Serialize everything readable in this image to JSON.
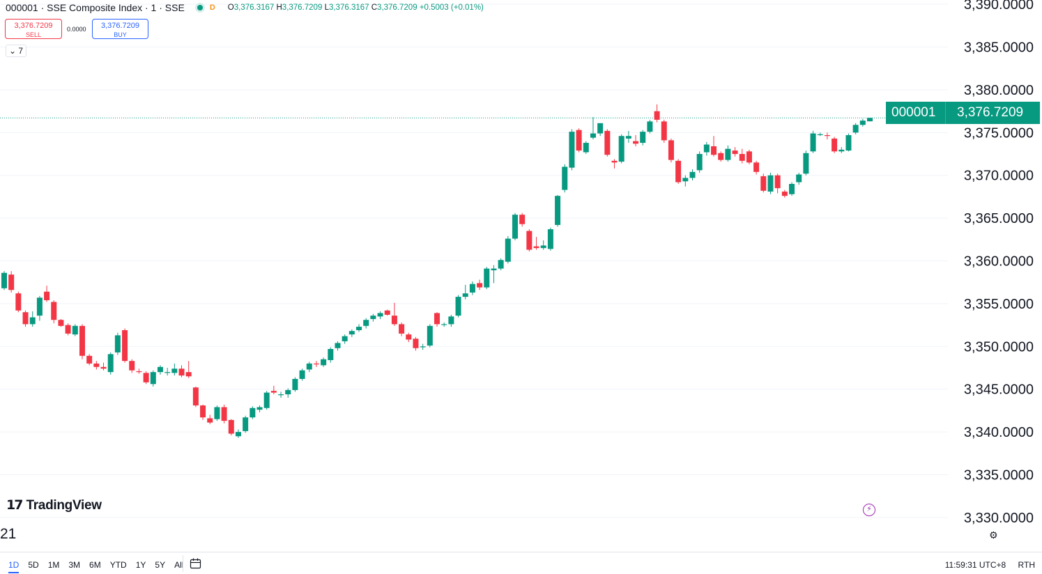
{
  "header": {
    "symbol_line": "000001 · SSE Composite Index · 1 · SSE",
    "badge": "D",
    "o_label": "O",
    "o_value": "3,376.3167",
    "h_label": "H",
    "h_value": "3,376.7209",
    "l_label": "L",
    "l_value": "3,376.3167",
    "c_label": "C",
    "c_value": "3,376.7209",
    "change": "+0.5003 (+0.01%)"
  },
  "trade": {
    "sell_price": "3,376.7209",
    "sell_label": "SELL",
    "spread": "0.0000",
    "buy_price": "3,376.7209",
    "buy_label": "BUY"
  },
  "indicators_toggle": "7",
  "brand": "TradingView",
  "price_tag": {
    "symbol": "000001",
    "value": "3,376.7209"
  },
  "x_axis_fragment": "21",
  "ranges": [
    "1D",
    "5D",
    "1M",
    "3M",
    "6M",
    "YTD",
    "1Y",
    "5Y",
    "All"
  ],
  "active_range": "1D",
  "clock": "11:59:31 UTC+8",
  "session": "RTH",
  "colors": {
    "up": "#089981",
    "down": "#f23645",
    "grid": "#f0f3fa",
    "accent": "#2962ff"
  },
  "icons": [
    "chevron-down-icon",
    "calendar-icon",
    "lightning-icon",
    "gear-icon",
    "tradingview-logo-icon"
  ],
  "chart_data": {
    "type": "candlestick",
    "y_ticks": [
      3330,
      3335,
      3340,
      3345,
      3350,
      3355,
      3360,
      3365,
      3370,
      3375,
      3380,
      3385,
      3390
    ],
    "y_tick_labels": [
      "3,330.0000",
      "3,335.0000",
      "3,340.0000",
      "3,345.0000",
      "3,350.0000",
      "3,355.0000",
      "3,360.0000",
      "3,365.0000",
      "3,370.0000",
      "3,375.0000",
      "3,380.0000",
      "3,385.0000",
      "3,390.0000"
    ],
    "ylim": [
      3326,
      3390.5
    ],
    "last_price": 3376.7209,
    "grid": true,
    "candles": [
      [
        3356.8,
        3358.8,
        3356.6,
        3358.6
      ],
      [
        3358.4,
        3358.8,
        3356.3,
        3356.6
      ],
      [
        3356.2,
        3356.4,
        3354.0,
        3354.2
      ],
      [
        3354.0,
        3354.2,
        3352.3,
        3352.6
      ],
      [
        3352.6,
        3354.1,
        3352.3,
        3353.4
      ],
      [
        3353.6,
        3355.9,
        3353.0,
        3355.7
      ],
      [
        3356.4,
        3357.1,
        3355.2,
        3355.4
      ],
      [
        3355.2,
        3355.4,
        3352.7,
        3353.1
      ],
      [
        3353.1,
        3353.2,
        3352.3,
        3352.4
      ],
      [
        3352.5,
        3352.7,
        3351.3,
        3351.5
      ],
      [
        3351.4,
        3352.6,
        3351.2,
        3352.4
      ],
      [
        3352.4,
        3352.6,
        3348.5,
        3348.9
      ],
      [
        3348.9,
        3349.1,
        3347.8,
        3348.0
      ],
      [
        3348.0,
        3348.3,
        3347.3,
        3347.6
      ],
      [
        3347.6,
        3348.1,
        3347.2,
        3347.4
      ],
      [
        3347.0,
        3349.3,
        3346.7,
        3349.1
      ],
      [
        3349.3,
        3351.6,
        3349.0,
        3351.3
      ],
      [
        3351.9,
        3352.1,
        3348.1,
        3348.3
      ],
      [
        3348.3,
        3348.5,
        3346.9,
        3347.2
      ],
      [
        3347.1,
        3347.4,
        3346.8,
        3347.0
      ],
      [
        3346.9,
        3347.1,
        3345.6,
        3345.8
      ],
      [
        3345.6,
        3347.2,
        3345.3,
        3347.0
      ],
      [
        3347.0,
        3347.8,
        3346.7,
        3347.6
      ],
      [
        3346.9,
        3347.5,
        3346.6,
        3347.0
      ],
      [
        3346.9,
        3348.0,
        3346.6,
        3347.4
      ],
      [
        3347.4,
        3347.8,
        3346.4,
        3346.6
      ],
      [
        3347.0,
        3348.3,
        3346.3,
        3346.5
      ],
      [
        3345.2,
        3345.3,
        3342.9,
        3343.1
      ],
      [
        3343.1,
        3343.2,
        3341.4,
        3341.7
      ],
      [
        3341.6,
        3342.0,
        3340.9,
        3341.1
      ],
      [
        3341.5,
        3343.1,
        3341.3,
        3342.9
      ],
      [
        3342.9,
        3343.2,
        3341.0,
        3341.3
      ],
      [
        3341.4,
        3341.5,
        3339.6,
        3339.8
      ],
      [
        3339.5,
        3340.3,
        3339.3,
        3340.0
      ],
      [
        3340.1,
        3341.9,
        3339.9,
        3341.7
      ],
      [
        3341.7,
        3343.0,
        3341.5,
        3342.8
      ],
      [
        3342.6,
        3343.1,
        3342.3,
        3342.9
      ],
      [
        3342.8,
        3344.8,
        3342.6,
        3344.6
      ],
      [
        3344.8,
        3345.4,
        3344.4,
        3344.6
      ],
      [
        3344.3,
        3344.7,
        3344.0,
        3344.4
      ],
      [
        3344.4,
        3345.1,
        3344.0,
        3344.9
      ],
      [
        3344.9,
        3346.4,
        3344.7,
        3346.2
      ],
      [
        3346.2,
        3347.4,
        3346.0,
        3347.2
      ],
      [
        3347.3,
        3348.2,
        3347.0,
        3348.0
      ],
      [
        3348.0,
        3348.3,
        3347.6,
        3347.9
      ],
      [
        3347.8,
        3348.7,
        3347.6,
        3348.5
      ],
      [
        3348.4,
        3349.9,
        3348.1,
        3349.7
      ],
      [
        3349.8,
        3350.6,
        3349.5,
        3350.4
      ],
      [
        3350.6,
        3351.4,
        3350.3,
        3351.2
      ],
      [
        3351.4,
        3352.0,
        3351.1,
        3351.8
      ],
      [
        3351.9,
        3352.6,
        3351.7,
        3352.3
      ],
      [
        3352.4,
        3353.3,
        3352.1,
        3353.1
      ],
      [
        3353.2,
        3353.8,
        3352.9,
        3353.6
      ],
      [
        3353.5,
        3354.1,
        3353.2,
        3353.9
      ],
      [
        3354.2,
        3354.3,
        3353.6,
        3353.7
      ],
      [
        3353.6,
        3355.1,
        3352.4,
        3352.6
      ],
      [
        3352.6,
        3352.8,
        3351.2,
        3351.5
      ],
      [
        3351.4,
        3351.6,
        3350.5,
        3350.8
      ],
      [
        3350.9,
        3351.1,
        3349.5,
        3349.8
      ],
      [
        3349.9,
        3350.3,
        3349.6,
        3350.0
      ],
      [
        3350.1,
        3352.6,
        3349.9,
        3352.4
      ],
      [
        3353.9,
        3354.0,
        3352.3,
        3352.6
      ],
      [
        3352.6,
        3352.8,
        3352.3,
        3352.6
      ],
      [
        3352.6,
        3353.7,
        3352.3,
        3353.5
      ],
      [
        3353.6,
        3356.0,
        3353.4,
        3355.8
      ],
      [
        3355.8,
        3357.2,
        3355.5,
        3356.2
      ],
      [
        3356.3,
        3357.6,
        3356.0,
        3357.3
      ],
      [
        3357.4,
        3357.8,
        3356.6,
        3356.9
      ],
      [
        3356.9,
        3359.3,
        3356.7,
        3359.1
      ],
      [
        3358.9,
        3359.5,
        3357.4,
        3359.1
      ],
      [
        3359.1,
        3360.3,
        3358.9,
        3360.1
      ],
      [
        3359.9,
        3362.9,
        3359.7,
        3362.6
      ],
      [
        3362.6,
        3365.6,
        3362.4,
        3365.4
      ],
      [
        3365.4,
        3365.6,
        3364.0,
        3364.3
      ],
      [
        3363.5,
        3363.7,
        3361.1,
        3361.3
      ],
      [
        3361.7,
        3362.8,
        3361.3,
        3361.5
      ],
      [
        3361.5,
        3362.4,
        3361.3,
        3361.8
      ],
      [
        3361.4,
        3363.9,
        3361.2,
        3363.7
      ],
      [
        3364.2,
        3367.7,
        3364.0,
        3367.6
      ],
      [
        3368.3,
        3371.3,
        3368.0,
        3371.0
      ],
      [
        3370.9,
        3375.4,
        3370.6,
        3375.1
      ],
      [
        3375.3,
        3375.5,
        3372.7,
        3372.9
      ],
      [
        3372.7,
        3374.0,
        3372.5,
        3373.8
      ],
      [
        3374.4,
        3376.8,
        3374.2,
        3374.9
      ],
      [
        3374.9,
        3375.8,
        3374.6,
        3376.1
      ],
      [
        3375.2,
        3375.4,
        3372.2,
        3372.4
      ],
      [
        3371.7,
        3371.9,
        3370.8,
        3371.5
      ],
      [
        3371.6,
        3374.8,
        3371.4,
        3374.6
      ],
      [
        3374.3,
        3375.2,
        3373.8,
        3374.6
      ],
      [
        3374.0,
        3374.7,
        3373.4,
        3373.7
      ],
      [
        3373.8,
        3375.3,
        3373.5,
        3375.1
      ],
      [
        3375.1,
        3376.5,
        3374.9,
        3376.3
      ],
      [
        3377.5,
        3378.3,
        3376.2,
        3376.5
      ],
      [
        3376.3,
        3376.5,
        3373.8,
        3374.1
      ],
      [
        3374.1,
        3374.3,
        3371.5,
        3371.8
      ],
      [
        3371.7,
        3371.9,
        3369.0,
        3369.2
      ],
      [
        3369.3,
        3370.0,
        3368.7,
        3369.7
      ],
      [
        3369.7,
        3370.7,
        3369.4,
        3370.4
      ],
      [
        3370.6,
        3372.8,
        3370.3,
        3372.5
      ],
      [
        3372.7,
        3373.9,
        3372.3,
        3373.6
      ],
      [
        3373.4,
        3374.6,
        3372.2,
        3372.4
      ],
      [
        3372.6,
        3372.8,
        3371.6,
        3371.8
      ],
      [
        3371.8,
        3373.5,
        3371.6,
        3373.1
      ],
      [
        3372.9,
        3373.3,
        3372.2,
        3372.5
      ],
      [
        3372.5,
        3373.1,
        3371.4,
        3371.7
      ],
      [
        3372.8,
        3373.0,
        3371.3,
        3371.5
      ],
      [
        3371.5,
        3371.7,
        3370.1,
        3370.4
      ],
      [
        3369.9,
        3370.2,
        3368.0,
        3368.2
      ],
      [
        3368.1,
        3370.3,
        3367.8,
        3370.0
      ],
      [
        3370.0,
        3370.2,
        3367.9,
        3368.5
      ],
      [
        3368.1,
        3368.3,
        3367.4,
        3367.6
      ],
      [
        3367.8,
        3369.2,
        3367.6,
        3369.0
      ],
      [
        3369.2,
        3370.3,
        3368.9,
        3370.1
      ],
      [
        3370.2,
        3372.9,
        3370.0,
        3372.6
      ],
      [
        3372.8,
        3375.2,
        3372.6,
        3374.9
      ],
      [
        3374.8,
        3375.0,
        3374.6,
        3374.8
      ],
      [
        3374.7,
        3375.0,
        3374.2,
        3374.6
      ],
      [
        3374.3,
        3374.5,
        3372.6,
        3372.8
      ],
      [
        3372.8,
        3373.3,
        3372.6,
        3373.0
      ],
      [
        3372.9,
        3374.9,
        3372.8,
        3374.7
      ],
      [
        3375.0,
        3376.1,
        3374.8,
        3375.9
      ],
      [
        3375.9,
        3376.6,
        3375.7,
        3376.4
      ],
      [
        3376.3167,
        3376.7209,
        3376.3167,
        3376.7209
      ]
    ]
  }
}
